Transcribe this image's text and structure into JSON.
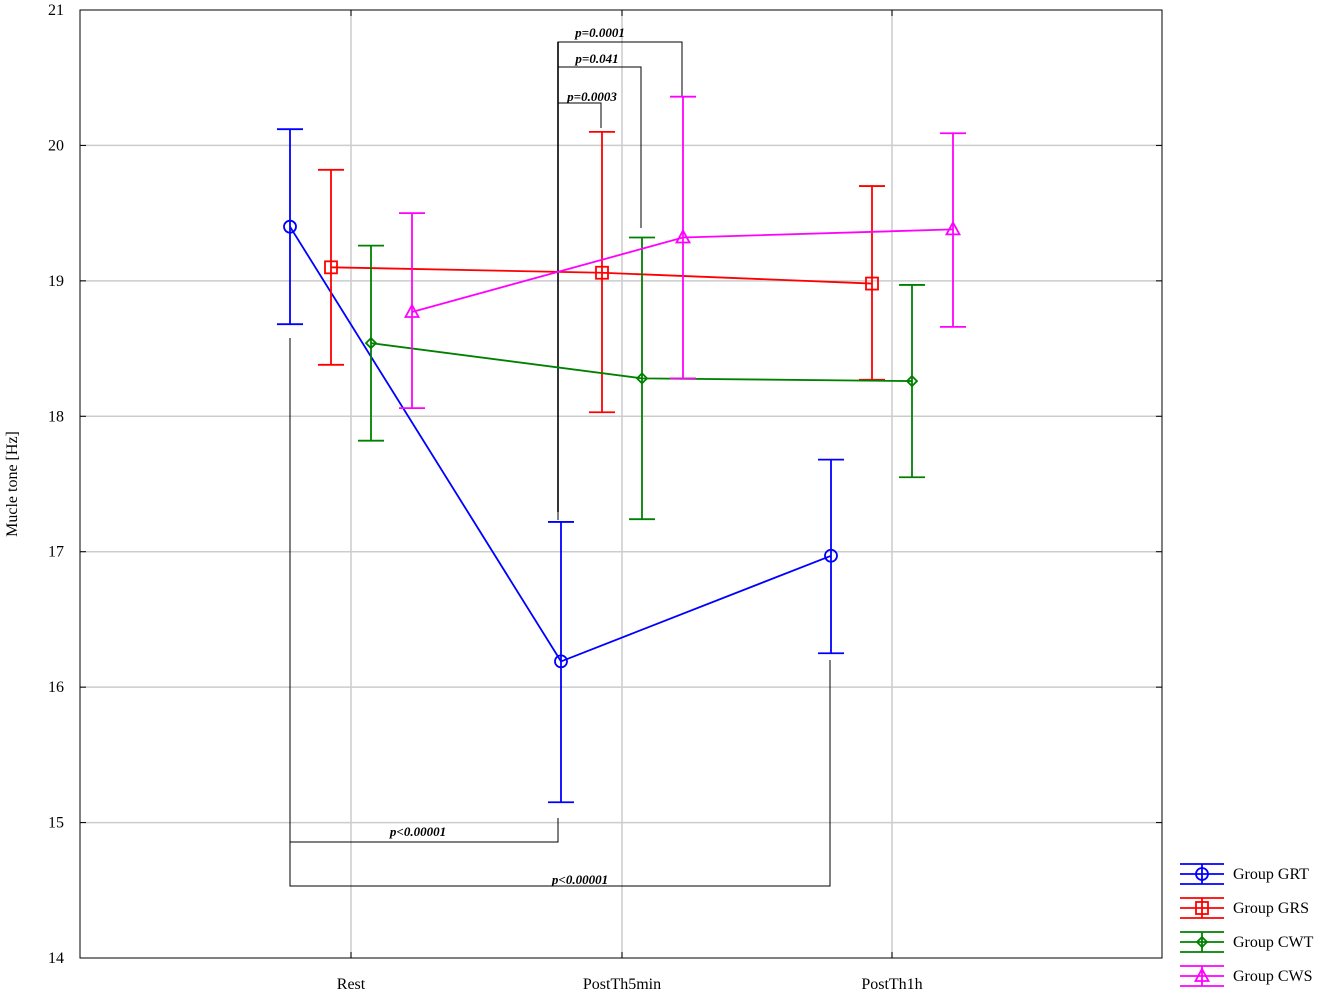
{
  "chart_data": {
    "type": "line",
    "ylabel": "Mucle tone [Hz]",
    "xlabel": "",
    "ylim": [
      14,
      21
    ],
    "yticks": [
      14,
      15,
      16,
      17,
      18,
      19,
      20,
      21
    ],
    "categories": [
      "Rest",
      "PostTh5min",
      "PostTh1h"
    ],
    "grid": true,
    "legend_position": "bottom-right-outside",
    "series": [
      {
        "name": "Group GRT",
        "color": "#0000ff",
        "marker": "circle",
        "values": [
          19.4,
          16.19,
          16.97
        ],
        "err_low": [
          18.68,
          15.15,
          16.25
        ],
        "err_high": [
          20.12,
          17.22,
          17.68
        ]
      },
      {
        "name": "Group GRS",
        "color": "#ff0000",
        "marker": "square",
        "values": [
          19.1,
          19.06,
          18.98
        ],
        "err_low": [
          18.38,
          18.03,
          18.27
        ],
        "err_high": [
          19.82,
          20.1,
          19.7
        ]
      },
      {
        "name": "Group CWT",
        "color": "#008000",
        "marker": "diamond",
        "values": [
          18.54,
          18.28,
          18.26
        ],
        "err_low": [
          17.82,
          17.24,
          17.55
        ],
        "err_high": [
          19.26,
          19.32,
          18.97
        ]
      },
      {
        "name": "Group CWS",
        "color": "#ff00ff",
        "marker": "triangle",
        "values": [
          18.77,
          19.32,
          19.38
        ],
        "err_low": [
          18.06,
          18.28,
          18.66
        ],
        "err_high": [
          19.5,
          20.36,
          20.09
        ]
      }
    ],
    "annotations": [
      {
        "text": "p=0.0001"
      },
      {
        "text": "p=0.041"
      },
      {
        "text": "p=0.0003"
      },
      {
        "text": "p<0.00001"
      },
      {
        "text": "p<0.00001"
      }
    ]
  }
}
